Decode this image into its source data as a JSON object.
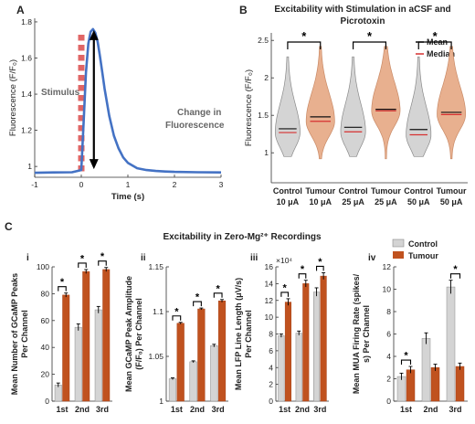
{
  "panels": {
    "A": {
      "letter": "A",
      "chart_data": {
        "type": "line",
        "xlabel": "Time (s)",
        "ylabel": "Fluorescence (F/F₀)",
        "xlim": [
          -1,
          3
        ],
        "ylim": [
          0.94,
          1.82
        ],
        "xticks": [
          -1,
          0,
          1,
          2,
          3
        ],
        "yticks": [
          1,
          1.2,
          1.4,
          1.6,
          1.8
        ],
        "ytick_labels": [
          "1",
          "1.2",
          "1.4",
          "1.6",
          "1.8"
        ],
        "x": [
          -1.0,
          -0.6,
          -0.2,
          0.0,
          0.05,
          0.1,
          0.15,
          0.2,
          0.25,
          0.3,
          0.35,
          0.4,
          0.45,
          0.5,
          0.6,
          0.7,
          0.8,
          0.9,
          1.0,
          1.2,
          1.4,
          1.6,
          1.8,
          2.0,
          2.5,
          3.0
        ],
        "y": [
          0.965,
          0.967,
          0.968,
          0.98,
          1.25,
          1.52,
          1.68,
          1.745,
          1.76,
          1.74,
          1.69,
          1.61,
          1.52,
          1.43,
          1.28,
          1.17,
          1.1,
          1.05,
          1.02,
          0.99,
          0.98,
          0.975,
          0.972,
          0.97,
          0.968,
          0.967
        ],
        "annotations": [
          "Stimulus",
          "Change in",
          "Fluorescence"
        ]
      }
    },
    "B": {
      "letter": "B",
      "chart_data": {
        "type": "violin",
        "title": [
          "Excitability with Stimulation in aCSF and",
          "Picrotoxin"
        ],
        "ylabel": "Fluorescence (F/F₀)",
        "ylim": [
          0.6,
          2.6
        ],
        "yticks": [
          1,
          1.5,
          2,
          2.5
        ],
        "ytick_labels": [
          "1",
          "1.5",
          "2",
          "2.5"
        ],
        "categories": [
          [
            "Control",
            "10 μA"
          ],
          [
            "Tumour",
            "10 μA"
          ],
          [
            "Control",
            "25 μA"
          ],
          [
            "Tumour",
            "25 μA"
          ],
          [
            "Control",
            "50 μA"
          ],
          [
            "Tumour",
            "50 μA"
          ]
        ],
        "groups": [
          "control",
          "tumour",
          "control",
          "tumour",
          "control",
          "tumour"
        ],
        "mean": [
          1.32,
          1.48,
          1.34,
          1.58,
          1.31,
          1.54
        ],
        "median": [
          1.27,
          1.42,
          1.28,
          1.56,
          1.24,
          1.51
        ],
        "significance": [
          "*",
          "*",
          "*"
        ],
        "legend": [
          "Mean",
          "Median"
        ]
      }
    },
    "C": {
      "letter": "C",
      "title": "Excitability in Zero-Mg²⁺ Recordings",
      "legend": [
        "Control",
        "Tumour"
      ],
      "chart_data": [
        {
          "type": "bar",
          "roman": "i",
          "categories": [
            "1st",
            "2nd",
            "3rd"
          ],
          "ylabel": [
            "Mean Number of GCaMP Peaks",
            "Per Channel"
          ],
          "ylim": [
            0,
            100
          ],
          "yticks": [
            0,
            20,
            40,
            60,
            80,
            100
          ],
          "ytick_labels": [
            "0",
            "20",
            "40",
            "60",
            "80",
            "100"
          ],
          "series": [
            {
              "name": "Control",
              "values": [
                12,
                55,
                68
              ],
              "errors": [
                1.5,
                2.5,
                2.5
              ]
            },
            {
              "name": "Tumour",
              "values": [
                79,
                96.5,
                98
              ],
              "errors": [
                1.5,
                1.5,
                1.5
              ]
            }
          ],
          "significance": [
            "*",
            "*",
            "*"
          ]
        },
        {
          "type": "bar",
          "roman": "ii",
          "categories": [
            "1st",
            "2nd",
            "3rd"
          ],
          "ylabel": [
            "Mean GCaMP Peak Amplitude",
            "(F/F₀) Per Channel"
          ],
          "ylim": [
            1.0,
            1.15
          ],
          "yticks": [
            1.0,
            1.05,
            1.1,
            1.15
          ],
          "ytick_labels": [
            "1",
            "1.05",
            "1.1",
            "1.15"
          ],
          "series": [
            {
              "name": "Control",
              "values": [
                1.025,
                1.044,
                1.062
              ],
              "errors": [
                0.001,
                0.001,
                0.0015
              ]
            },
            {
              "name": "Tumour",
              "values": [
                1.087,
                1.103,
                1.112
              ],
              "errors": [
                0.001,
                0.001,
                0.0015
              ]
            }
          ],
          "significance": [
            "*",
            "*",
            "*"
          ]
        },
        {
          "type": "bar",
          "roman": "iii",
          "categories": [
            "1st",
            "2nd",
            "3rd"
          ],
          "ylabel": [
            "Mean LFP Line Length (μV/s)",
            "Per Channel"
          ],
          "ylim": [
            0,
            16
          ],
          "yticks": [
            0,
            2,
            4,
            6,
            8,
            10,
            12,
            14,
            16
          ],
          "ytick_labels": [
            "0",
            "2",
            "4",
            "6",
            "8",
            "10",
            "12",
            "14",
            "16"
          ],
          "exponent_label": "×10⁴",
          "series": [
            {
              "name": "Control",
              "values": [
                7.8,
                8.1,
                13
              ],
              "errors": [
                0.2,
                0.25,
                0.5
              ]
            },
            {
              "name": "Tumour",
              "values": [
                11.8,
                14,
                14.9
              ],
              "errors": [
                0.4,
                0.4,
                0.4
              ]
            }
          ],
          "significance": [
            "*",
            "*",
            "*"
          ]
        },
        {
          "type": "bar",
          "roman": "iv",
          "categories": [
            "1st",
            "2nd",
            "3rd"
          ],
          "ylabel": [
            "Mean MUA Firing Rate (spikes/",
            "s) Per Channel"
          ],
          "ylim": [
            0,
            12
          ],
          "yticks": [
            0,
            2,
            4,
            6,
            8,
            10,
            12
          ],
          "ytick_labels": [
            "0",
            "2",
            "4",
            "6",
            "8",
            "10",
            "12"
          ],
          "series": [
            {
              "name": "Control",
              "values": [
                2.2,
                5.6,
                10.2
              ],
              "errors": [
                0.3,
                0.5,
                0.6
              ]
            },
            {
              "name": "Tumour",
              "values": [
                2.8,
                3.0,
                3.1
              ],
              "errors": [
                0.3,
                0.3,
                0.3
              ]
            }
          ],
          "significance": [
            "*",
            null,
            "*"
          ]
        }
      ]
    }
  },
  "colors": {
    "line": "#4472c4",
    "stimulus": "#e06666",
    "control_fill": "#d4d4d4",
    "control_stroke": "#8a8a8a",
    "tumour_fill": "#c0521f",
    "tumour_light": "#e8b08f",
    "mean_line": "#111111",
    "median_line": "#d63030",
    "axis": "#333333",
    "text": "#222222"
  }
}
